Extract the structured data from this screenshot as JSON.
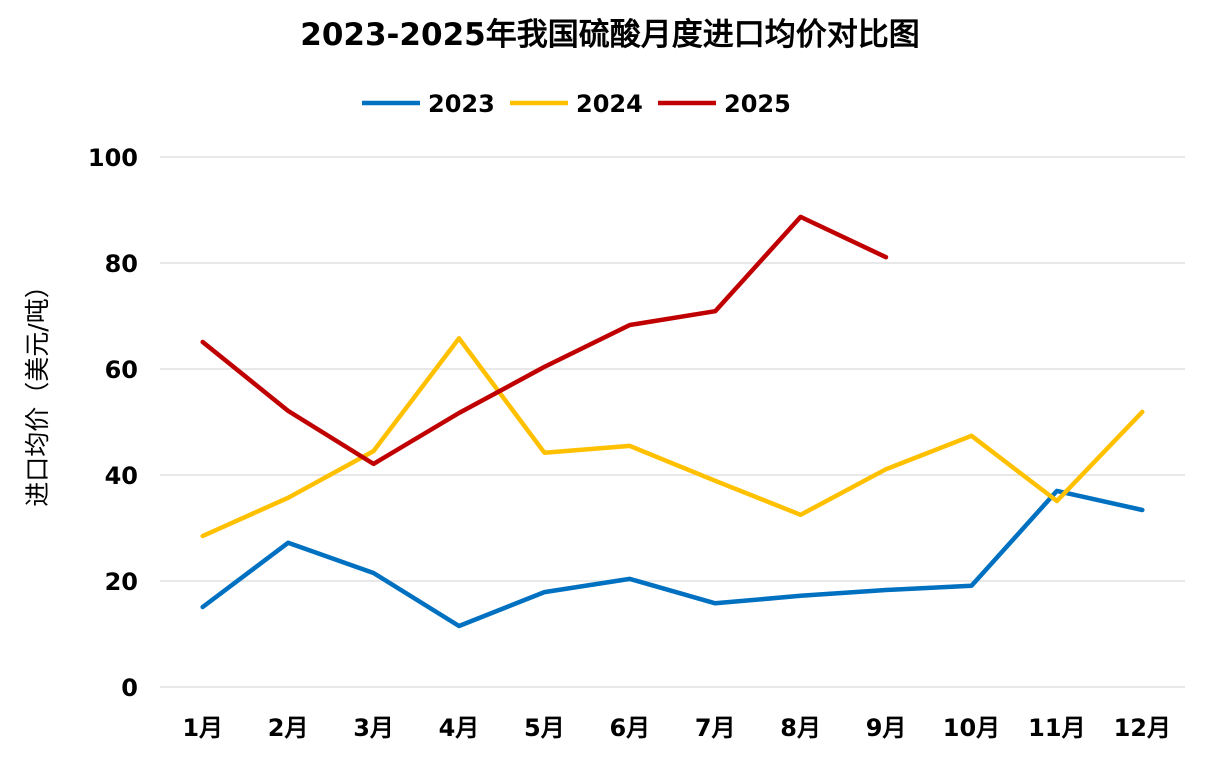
{
  "chart_data": {
    "type": "line",
    "title": "2023-2025年我国硫酸月度进口均价对比图",
    "xlabel": "",
    "ylabel": "进口均价（美元/吨）",
    "ylim": [
      0,
      100
    ],
    "yticks": [
      "0",
      "20",
      "40",
      "60",
      "80",
      "100"
    ],
    "ytick_values": [
      0,
      20,
      40,
      60,
      80,
      100
    ],
    "grid": true,
    "legend": "top",
    "categories": [
      "1月",
      "2月",
      "3月",
      "4月",
      "5月",
      "6月",
      "7月",
      "8月",
      "9月",
      "10月",
      "11月",
      "12月"
    ],
    "series": [
      {
        "name": "2023",
        "color": "#0070C0",
        "values": [
          15.1,
          27.2,
          21.5,
          11.5,
          17.9,
          20.4,
          15.8,
          17.2,
          18.3,
          19.1,
          37.0,
          33.4
        ]
      },
      {
        "name": "2024",
        "color": "#FFC000",
        "values": [
          28.5,
          35.7,
          44.5,
          65.8,
          44.2,
          45.5,
          38.9,
          32.5,
          41.1,
          47.4,
          35.1,
          51.9
        ]
      },
      {
        "name": "2025",
        "color": "#C00000",
        "values": [
          65.1,
          52.1,
          42.1,
          51.7,
          60.4,
          68.3,
          70.9,
          88.7,
          81.1,
          null,
          null,
          null
        ]
      }
    ]
  }
}
